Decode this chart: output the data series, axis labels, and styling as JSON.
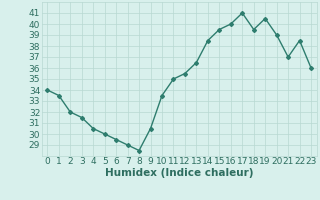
{
  "x": [
    0,
    1,
    2,
    3,
    4,
    5,
    6,
    7,
    8,
    9,
    10,
    11,
    12,
    13,
    14,
    15,
    16,
    17,
    18,
    19,
    20,
    21,
    22,
    23
  ],
  "y": [
    34.0,
    33.5,
    32.0,
    31.5,
    30.5,
    30.0,
    29.5,
    29.0,
    28.5,
    30.5,
    33.5,
    35.0,
    35.5,
    36.5,
    38.5,
    39.5,
    40.0,
    41.0,
    39.5,
    40.5,
    39.0,
    37.0,
    38.5,
    36.0
  ],
  "line_color": "#2e7d6e",
  "marker": "D",
  "marker_size": 2.0,
  "bg_color": "#d8f0ec",
  "grid_color": "#b8d8d2",
  "xlabel": "Humidex (Indice chaleur)",
  "ylim": [
    28.0,
    42.0
  ],
  "yticks": [
    29,
    30,
    31,
    32,
    33,
    34,
    35,
    36,
    37,
    38,
    39,
    40,
    41
  ],
  "xticks": [
    0,
    1,
    2,
    3,
    4,
    5,
    6,
    7,
    8,
    9,
    10,
    11,
    12,
    13,
    14,
    15,
    16,
    17,
    18,
    19,
    20,
    21,
    22,
    23
  ],
  "linewidth": 1.0,
  "font_color": "#2e6e60",
  "font_size": 6.5,
  "xlabel_fontsize": 7.5
}
